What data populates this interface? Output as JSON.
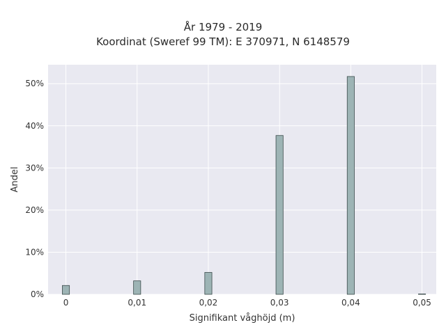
{
  "chart_data": {
    "type": "bar",
    "title_line1": "År 1979 - 2019",
    "title_line2": "Koordinat (Sweref 99 TM): E 370971, N 6148579",
    "xlabel": "Signifikant våghöjd (m)",
    "ylabel": "Andel",
    "x": [
      0,
      0.01,
      0.02,
      0.03,
      0.04,
      0.05
    ],
    "values": [
      2.1,
      3.2,
      5.2,
      37.7,
      51.7,
      0.1
    ],
    "xlim": [
      -0.0025,
      0.052
    ],
    "ylim": [
      0,
      54.5
    ],
    "bar_width": 0.001,
    "x_ticks": [
      0,
      0.01,
      0.02,
      0.03,
      0.04,
      0.05
    ],
    "x_tick_labels": [
      "0",
      "0,01",
      "0,02",
      "0,03",
      "0,04",
      "0,05"
    ],
    "y_ticks": [
      0,
      10,
      20,
      30,
      40,
      50
    ],
    "y_tick_labels": [
      "0%",
      "10%",
      "20%",
      "30%",
      "40%",
      "50%"
    ],
    "grid": true,
    "colors": {
      "bar_fill": "#9db4b5",
      "bar_stroke": "#3a4a4a",
      "plot_bg": "#e9e9f1",
      "grid": "#ffffff"
    }
  }
}
